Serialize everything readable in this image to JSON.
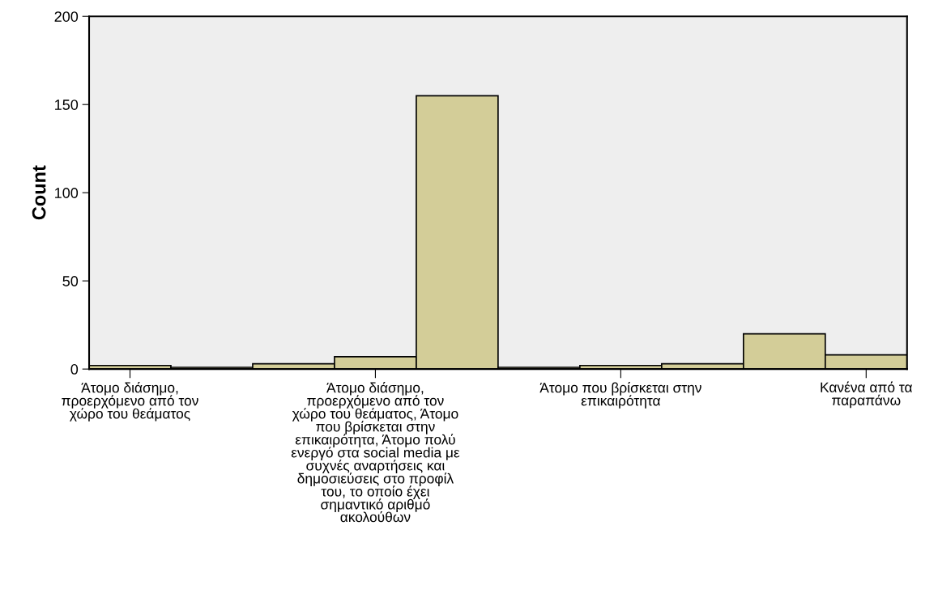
{
  "chart_data": {
    "type": "bar",
    "ylabel": "Count",
    "categories": [
      "Άτομο διάσημο,\nπροερχόμενο από τον\nχώρο του θεάματος",
      null,
      null,
      "Άτομο διάσημο,\nπροερχόμενο από τον\nχώρο του θεάματος, Άτομο\nπου βρίσκεται στην\nεπικαιρότητα, Άτομο πολύ\nενεργό στα social media με\nσυχνές αναρτήσεις και\nδημοσιεύσεις στο προφίλ\nτου, το οποίο έχει\nσημαντικό αριθμό\nακολούθων",
      null,
      null,
      "Άτομο που βρίσκεται στην\nεπικαιρότητα",
      null,
      null,
      "Κανένα από τα\nπαραπάνω"
    ],
    "values": [
      2,
      1,
      3,
      7,
      155,
      1,
      2,
      3,
      20,
      8
    ],
    "color": "#d3cd98",
    "ylim": [
      0,
      200
    ],
    "yticks": [
      0,
      50,
      100,
      150,
      200
    ],
    "grid": false
  }
}
